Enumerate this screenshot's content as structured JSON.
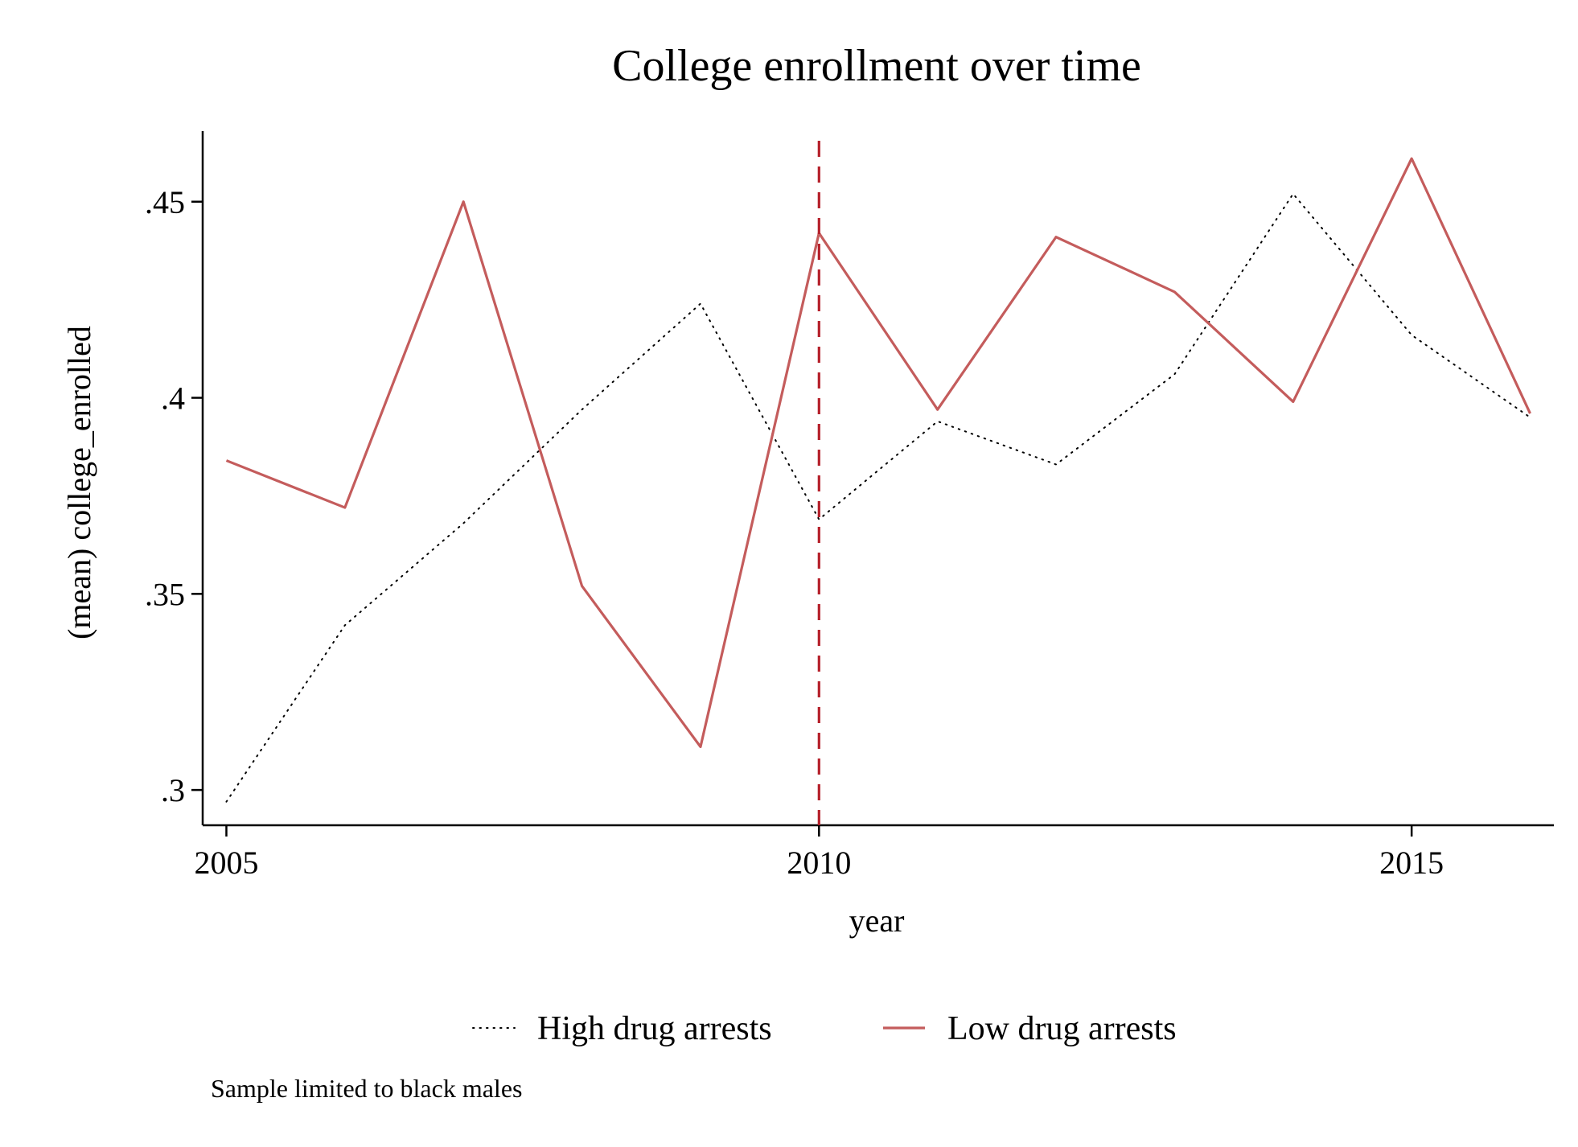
{
  "chart_data": {
    "type": "line",
    "title": "College enrollment over time",
    "xlabel": "year",
    "ylabel": "(mean) college_enrolled",
    "note": "Sample limited to black males",
    "x": [
      2005,
      2006,
      2007,
      2008,
      2009,
      2010,
      2011,
      2012,
      2013,
      2014,
      2015,
      2016
    ],
    "xlim": [
      2004.8,
      2016.2
    ],
    "ylim": [
      0.291,
      0.468
    ],
    "xticks": [
      2005,
      2010,
      2015
    ],
    "xtick_labels": [
      "2005",
      "2010",
      "2015"
    ],
    "yticks": [
      0.3,
      0.35,
      0.4,
      0.45
    ],
    "ytick_labels": [
      ".3",
      ".35",
      ".4",
      ".45"
    ],
    "grid": false,
    "legend_position": "bottom",
    "series": [
      {
        "name": "High drug arrests",
        "style": "dotted",
        "color": "#000000",
        "values": [
          0.297,
          0.342,
          0.368,
          0.397,
          0.424,
          0.369,
          0.394,
          0.383,
          0.406,
          0.452,
          0.416,
          0.395
        ]
      },
      {
        "name": "Low drug arrests",
        "style": "solid",
        "color": "#c45c5c",
        "values": [
          0.384,
          0.372,
          0.45,
          0.352,
          0.311,
          0.442,
          0.397,
          0.441,
          0.427,
          0.399,
          0.461,
          0.396
        ]
      }
    ],
    "reference_line": {
      "x": 2010,
      "style": "dashed",
      "color": "#b5202a"
    }
  }
}
